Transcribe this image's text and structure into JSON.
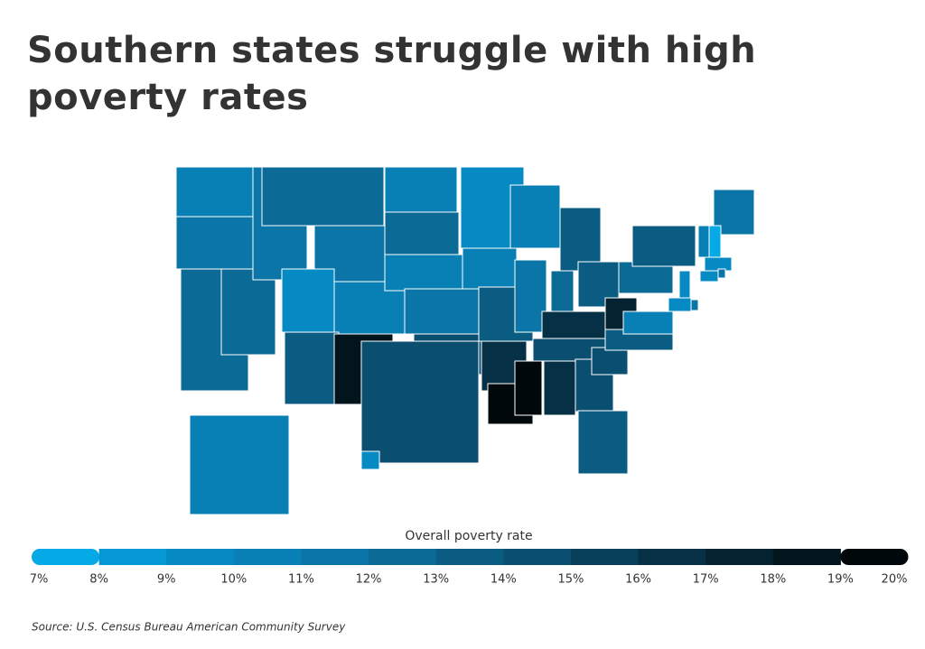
{
  "title": "Southern states struggle with high poverty rates",
  "legend": {
    "title": "Overall poverty rate",
    "ticks": [
      {
        "value": 7,
        "label": "7%"
      },
      {
        "value": 8,
        "label": "8%"
      },
      {
        "value": 9,
        "label": "9%"
      },
      {
        "value": 10,
        "label": "10%"
      },
      {
        "value": 11,
        "label": "11%"
      },
      {
        "value": 12,
        "label": "12%"
      },
      {
        "value": 13,
        "label": "13%"
      },
      {
        "value": 14,
        "label": "14%"
      },
      {
        "value": 15,
        "label": "15%"
      },
      {
        "value": 16,
        "label": "16%"
      },
      {
        "value": 17,
        "label": "17%"
      },
      {
        "value": 18,
        "label": "18%"
      },
      {
        "value": 19,
        "label": "19%"
      },
      {
        "value": 20,
        "label": "20%"
      }
    ],
    "colors": [
      "#05a9e6",
      "#0598d4",
      "#068ac4",
      "#0880b6",
      "#0a75a6",
      "#0b6a96",
      "#0b5c83",
      "#0a4e70",
      "#083f5b",
      "#063045",
      "#04222f",
      "#02141c",
      "#01080c"
    ]
  },
  "region_values": [
    10,
    11,
    12,
    12,
    11,
    12,
    11,
    9,
    10,
    13,
    18,
    10,
    12,
    10,
    11,
    14,
    14,
    9,
    10,
    13,
    16,
    19,
    10,
    11,
    19,
    13,
    12,
    13,
    16,
    14,
    16,
    14,
    13,
    14,
    13,
    17,
    10,
    12,
    13,
    11,
    10,
    7,
    9,
    9,
    9,
    9,
    11,
    10,
    9,
    11
  ],
  "source": "Source:  U.S. Census Bureau American Community Survey"
}
